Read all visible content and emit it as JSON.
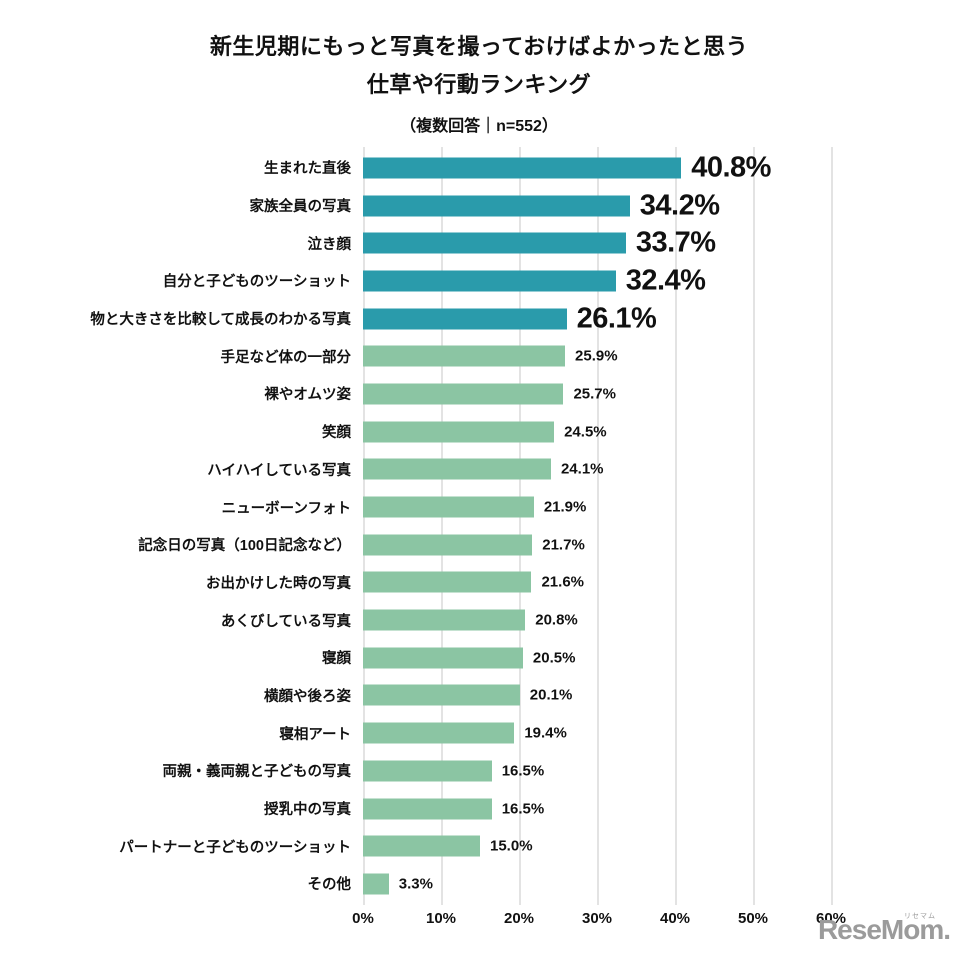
{
  "header": {
    "title_line1": "新生児期にもっと写真を撮っておけばよかったと思う",
    "title_line2": "仕草や行動ランキング",
    "subtitle": "（複数回答｜n=552）"
  },
  "chart_data": {
    "type": "bar",
    "orientation": "horizontal",
    "title": "新生児期にもっと写真を撮っておけばよかったと思う 仕草や行動ランキング",
    "subtitle": "（複数回答｜n=552）",
    "categories": [
      "生まれた直後",
      "家族全員の写真",
      "泣き顔",
      "自分と子どものツーショット",
      "物と大きさを比較して成長のわかる写真",
      "手足など体の一部分",
      "裸やオムツ姿",
      "笑顔",
      "ハイハイしている写真",
      "ニューボーンフォト",
      "記念日の写真（100日記念など）",
      "お出かけした時の写真",
      "あくびしている写真",
      "寝顔",
      "横顔や後ろ姿",
      "寝相アート",
      "両親・義両親と子どもの写真",
      "授乳中の写真",
      "パートナーと子どものツーショット",
      "その他"
    ],
    "values": [
      40.8,
      34.2,
      33.7,
      32.4,
      26.1,
      25.9,
      25.7,
      24.5,
      24.1,
      21.9,
      21.7,
      21.6,
      20.8,
      20.5,
      20.1,
      19.4,
      16.5,
      16.5,
      15.0,
      3.3
    ],
    "value_labels": [
      "40.8%",
      "34.2%",
      "33.7%",
      "32.4%",
      "26.1%",
      "25.9%",
      "25.7%",
      "24.5%",
      "24.1%",
      "21.9%",
      "21.7%",
      "21.6%",
      "20.8%",
      "20.5%",
      "20.1%",
      "19.4%",
      "16.5%",
      "16.5%",
      "15.0%",
      "3.3%"
    ],
    "highlight_top_n": 5,
    "colors": {
      "highlight_bar": "#2A9BAB",
      "normal_bar": "#8BC5A3",
      "gridline": "#E3E3E3",
      "text": "#111111"
    },
    "xlim": [
      0,
      60
    ],
    "x_ticks": [
      "0%",
      "10%",
      "20%",
      "30%",
      "40%",
      "50%",
      "60%"
    ],
    "grid": true,
    "legend_position": "none"
  },
  "footer": {
    "logo_text": "ReseMom.",
    "logo_ruby": "リセマム",
    "logo_color": "#9B9B9B"
  }
}
